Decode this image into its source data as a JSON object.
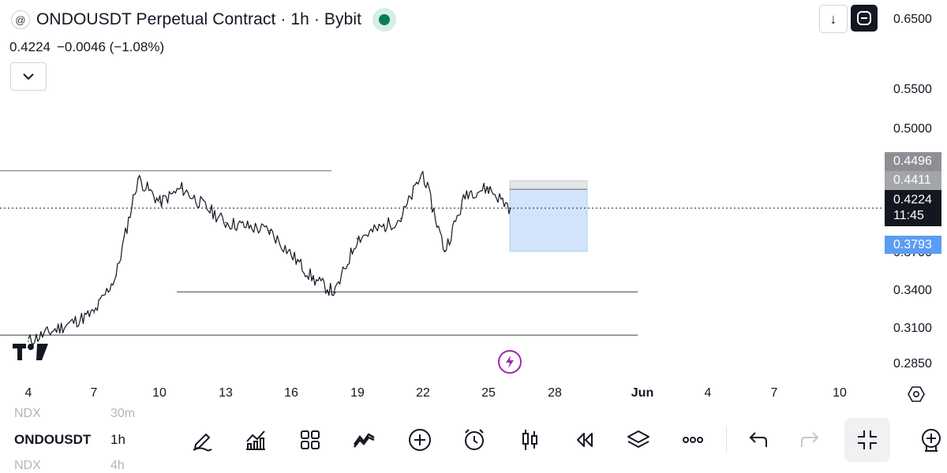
{
  "header": {
    "title": "ONDOUSDT Perpetual Contract · 1h · Bybit",
    "logo_glyph": "@",
    "status_color": "#0b7c56"
  },
  "quote": {
    "price": "0.4224",
    "change": "−0.0046 (−1.08%)"
  },
  "toolbar_top": {
    "download_glyph": "↓"
  },
  "price_axis": {
    "ticks": [
      "0.6500",
      "0.5500",
      "0.5000",
      "0.3700",
      "0.3400",
      "0.3100",
      "0.2850"
    ],
    "tags": {
      "upper": "0.4496",
      "mid": "0.4411",
      "last_price": "0.4224",
      "countdown": "11:45",
      "stop": "0.3793"
    }
  },
  "time_axis": [
    "4",
    "7",
    "10",
    "13",
    "16",
    "19",
    "22",
    "25",
    "28",
    "Jun",
    "4",
    "7",
    "10"
  ],
  "bottom_bar": {
    "symbol": "ONDOUSDT",
    "interval": "1h",
    "ghost_above_symbol": "NDX",
    "ghost_above_interval": "30m",
    "ghost_below_symbol": "NDX",
    "ghost_below_interval": "4h"
  },
  "chart_data": {
    "type": "line",
    "symbol": "ONDOUSDT",
    "interval": "1h",
    "x": [
      "May 4",
      "May 7",
      "May 8",
      "May 9",
      "May 10",
      "May 11",
      "May 13",
      "May 15",
      "May 17",
      "May 18",
      "May 19",
      "May 21",
      "May 22",
      "May 23",
      "May 24",
      "May 25",
      "May 26"
    ],
    "y": [
      0.29,
      0.318,
      0.355,
      0.452,
      0.428,
      0.442,
      0.408,
      0.4,
      0.352,
      0.338,
      0.392,
      0.412,
      0.458,
      0.38,
      0.438,
      0.442,
      0.4224
    ],
    "ylim": [
      0.28,
      0.65
    ],
    "horizontal_levels": [
      0.4595,
      0.339,
      0.296
    ],
    "position_box": {
      "entry": 0.4411,
      "target": 0.4496,
      "stop": 0.3793
    },
    "last_price": 0.4224,
    "grid": false
  }
}
